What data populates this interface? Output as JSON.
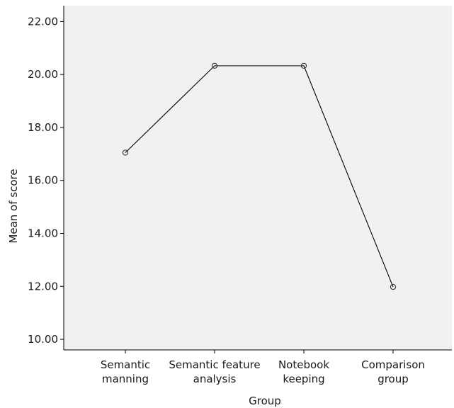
{
  "chart_data": {
    "type": "line",
    "categories": [
      [
        "Semantic",
        "manning"
      ],
      [
        "Semantic feature",
        "analysis"
      ],
      [
        "Notebook",
        "keeping"
      ],
      [
        "Comparison",
        "group"
      ]
    ],
    "series": [
      {
        "values": [
          17.05,
          20.33,
          20.33,
          11.98
        ]
      }
    ],
    "xlabel": "Group",
    "ylabel": "Mean of score",
    "ylim": [
      9.6,
      22.6
    ],
    "yticks": [
      "10.00",
      "12.00",
      "14.00",
      "16.00",
      "18.00",
      "20.00",
      "22.00"
    ],
    "grid": false,
    "line_color": "#000000",
    "plot_background": "#f1f1f1"
  }
}
